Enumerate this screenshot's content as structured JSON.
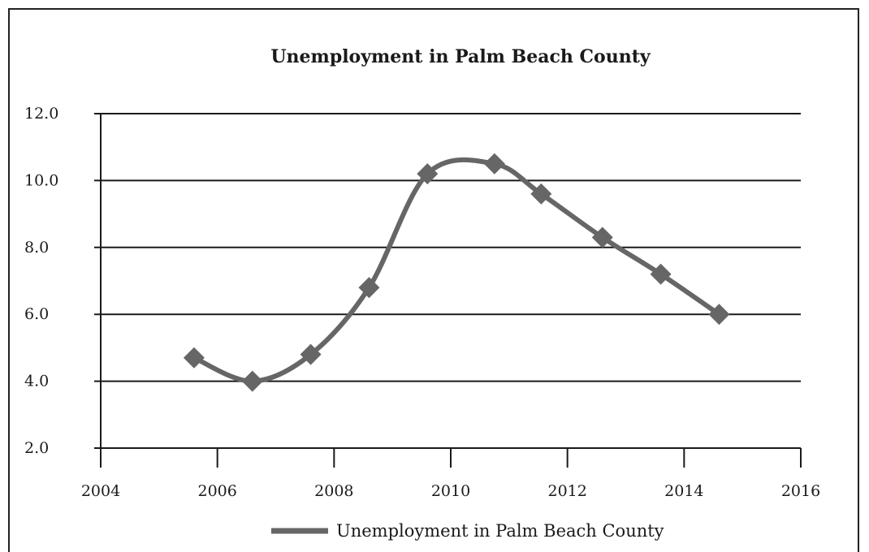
{
  "chart_data": {
    "type": "line",
    "title": "Unemployment in Palm Beach County",
    "xlabel": "",
    "ylabel": "",
    "xlim": [
      2004,
      2016
    ],
    "ylim": [
      2.0,
      12.0
    ],
    "x_ticks": [
      "2004",
      "2006",
      "2008",
      "2010",
      "2012",
      "2014",
      "2016"
    ],
    "y_ticks": [
      "2.0",
      "4.0",
      "6.0",
      "8.0",
      "10.0",
      "12.0"
    ],
    "grid": "horizontal",
    "smooth": true,
    "marker": "diamond",
    "legend_position": "bottom",
    "series": [
      {
        "name": "Unemployment in Palm Beach County",
        "color": "#666666",
        "points": [
          {
            "x": 2005.6,
            "y": 4.7
          },
          {
            "x": 2006.6,
            "y": 4.0
          },
          {
            "x": 2007.6,
            "y": 4.8
          },
          {
            "x": 2008.6,
            "y": 6.8
          },
          {
            "x": 2009.6,
            "y": 10.2
          },
          {
            "x": 2010.75,
            "y": 10.5
          },
          {
            "x": 2011.55,
            "y": 9.6
          },
          {
            "x": 2012.6,
            "y": 8.3
          },
          {
            "x": 2013.6,
            "y": 7.2
          },
          {
            "x": 2014.6,
            "y": 6.0
          }
        ]
      }
    ]
  }
}
